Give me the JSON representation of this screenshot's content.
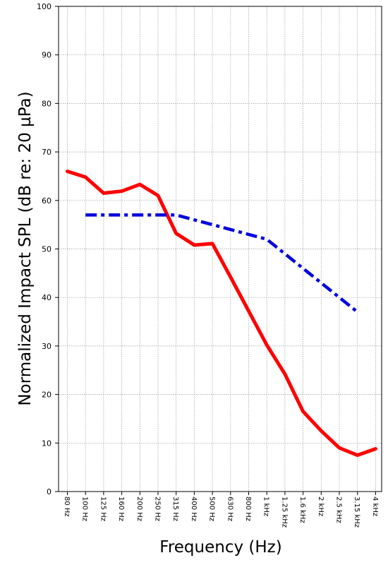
{
  "chart_data": {
    "type": "line",
    "title": "",
    "xlabel": "Frequency (Hz)",
    "ylabel": "Normalized Impact SPL (dB re: 20 µPa)",
    "ylim": [
      0,
      100
    ],
    "yticks": [
      0,
      10,
      20,
      30,
      40,
      50,
      60,
      70,
      80,
      90,
      100
    ],
    "grid": true,
    "categories": [
      "80 Hz",
      "100 Hz",
      "125 Hz",
      "160 Hz",
      "200 Hz",
      "250 Hz",
      "315 Hz",
      "400 Hz",
      "500 Hz",
      "630 Hz",
      "800 Hz",
      "1 kHz",
      "1.25 kHz",
      "1.6 kHz",
      "2 kHz",
      "2.5 kHz",
      "3.15 kHz",
      "4 kHz"
    ],
    "series": [
      {
        "values": [
          66,
          64.8,
          61.5,
          61.9,
          63.3,
          61,
          53.2,
          50.8,
          51.1,
          44.2,
          37.2,
          30.2,
          24.2,
          16.5,
          12.5,
          9,
          7.5,
          8.8
        ],
        "color": "#ff0000",
        "style": "solid"
      },
      {
        "values": [
          null,
          57,
          57,
          57,
          57,
          57,
          57,
          56,
          55,
          54,
          53,
          52,
          49,
          46,
          43,
          40,
          37,
          null
        ],
        "color": "#0000dd",
        "style": "dash-dot"
      }
    ]
  }
}
